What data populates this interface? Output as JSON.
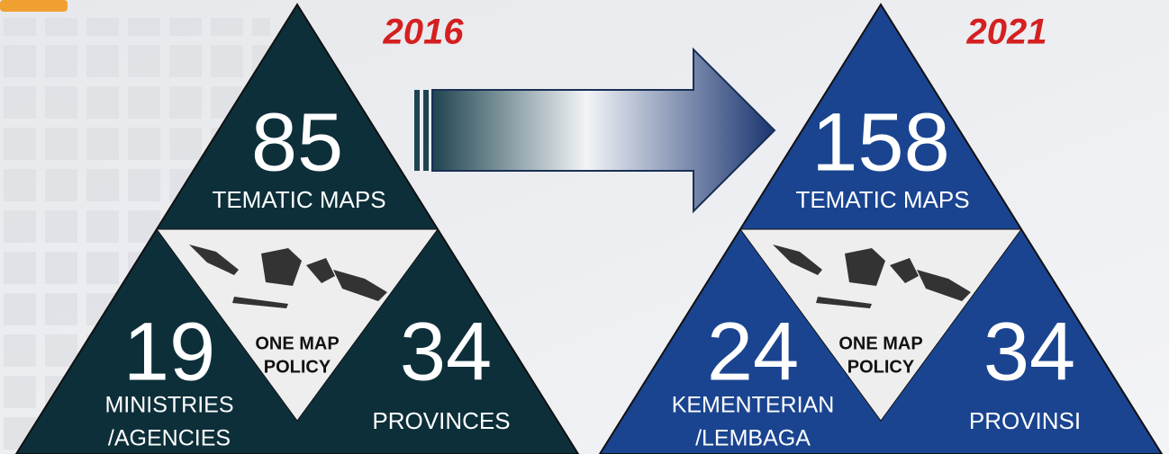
{
  "panels": [
    {
      "year": "2016",
      "maps": 85,
      "maps_label": "TEMATIC MAPS",
      "agencies": 19,
      "agencies_label": [
        "MINISTRIES",
        "/AGENCIES"
      ],
      "provinces": 34,
      "provinces_label": "PROVINCES",
      "center": [
        "ONE MAP",
        "POLICY"
      ]
    },
    {
      "year": "2021",
      "maps": 158,
      "maps_label": "TEMATIC MAPS",
      "agencies": 24,
      "agencies_label": [
        "KEMENTERIAN",
        "/LEMBAGA"
      ],
      "provinces": 34,
      "provinces_label": "PROVINSI",
      "center": [
        "ONE MAP",
        "POLICY"
      ]
    }
  ]
}
